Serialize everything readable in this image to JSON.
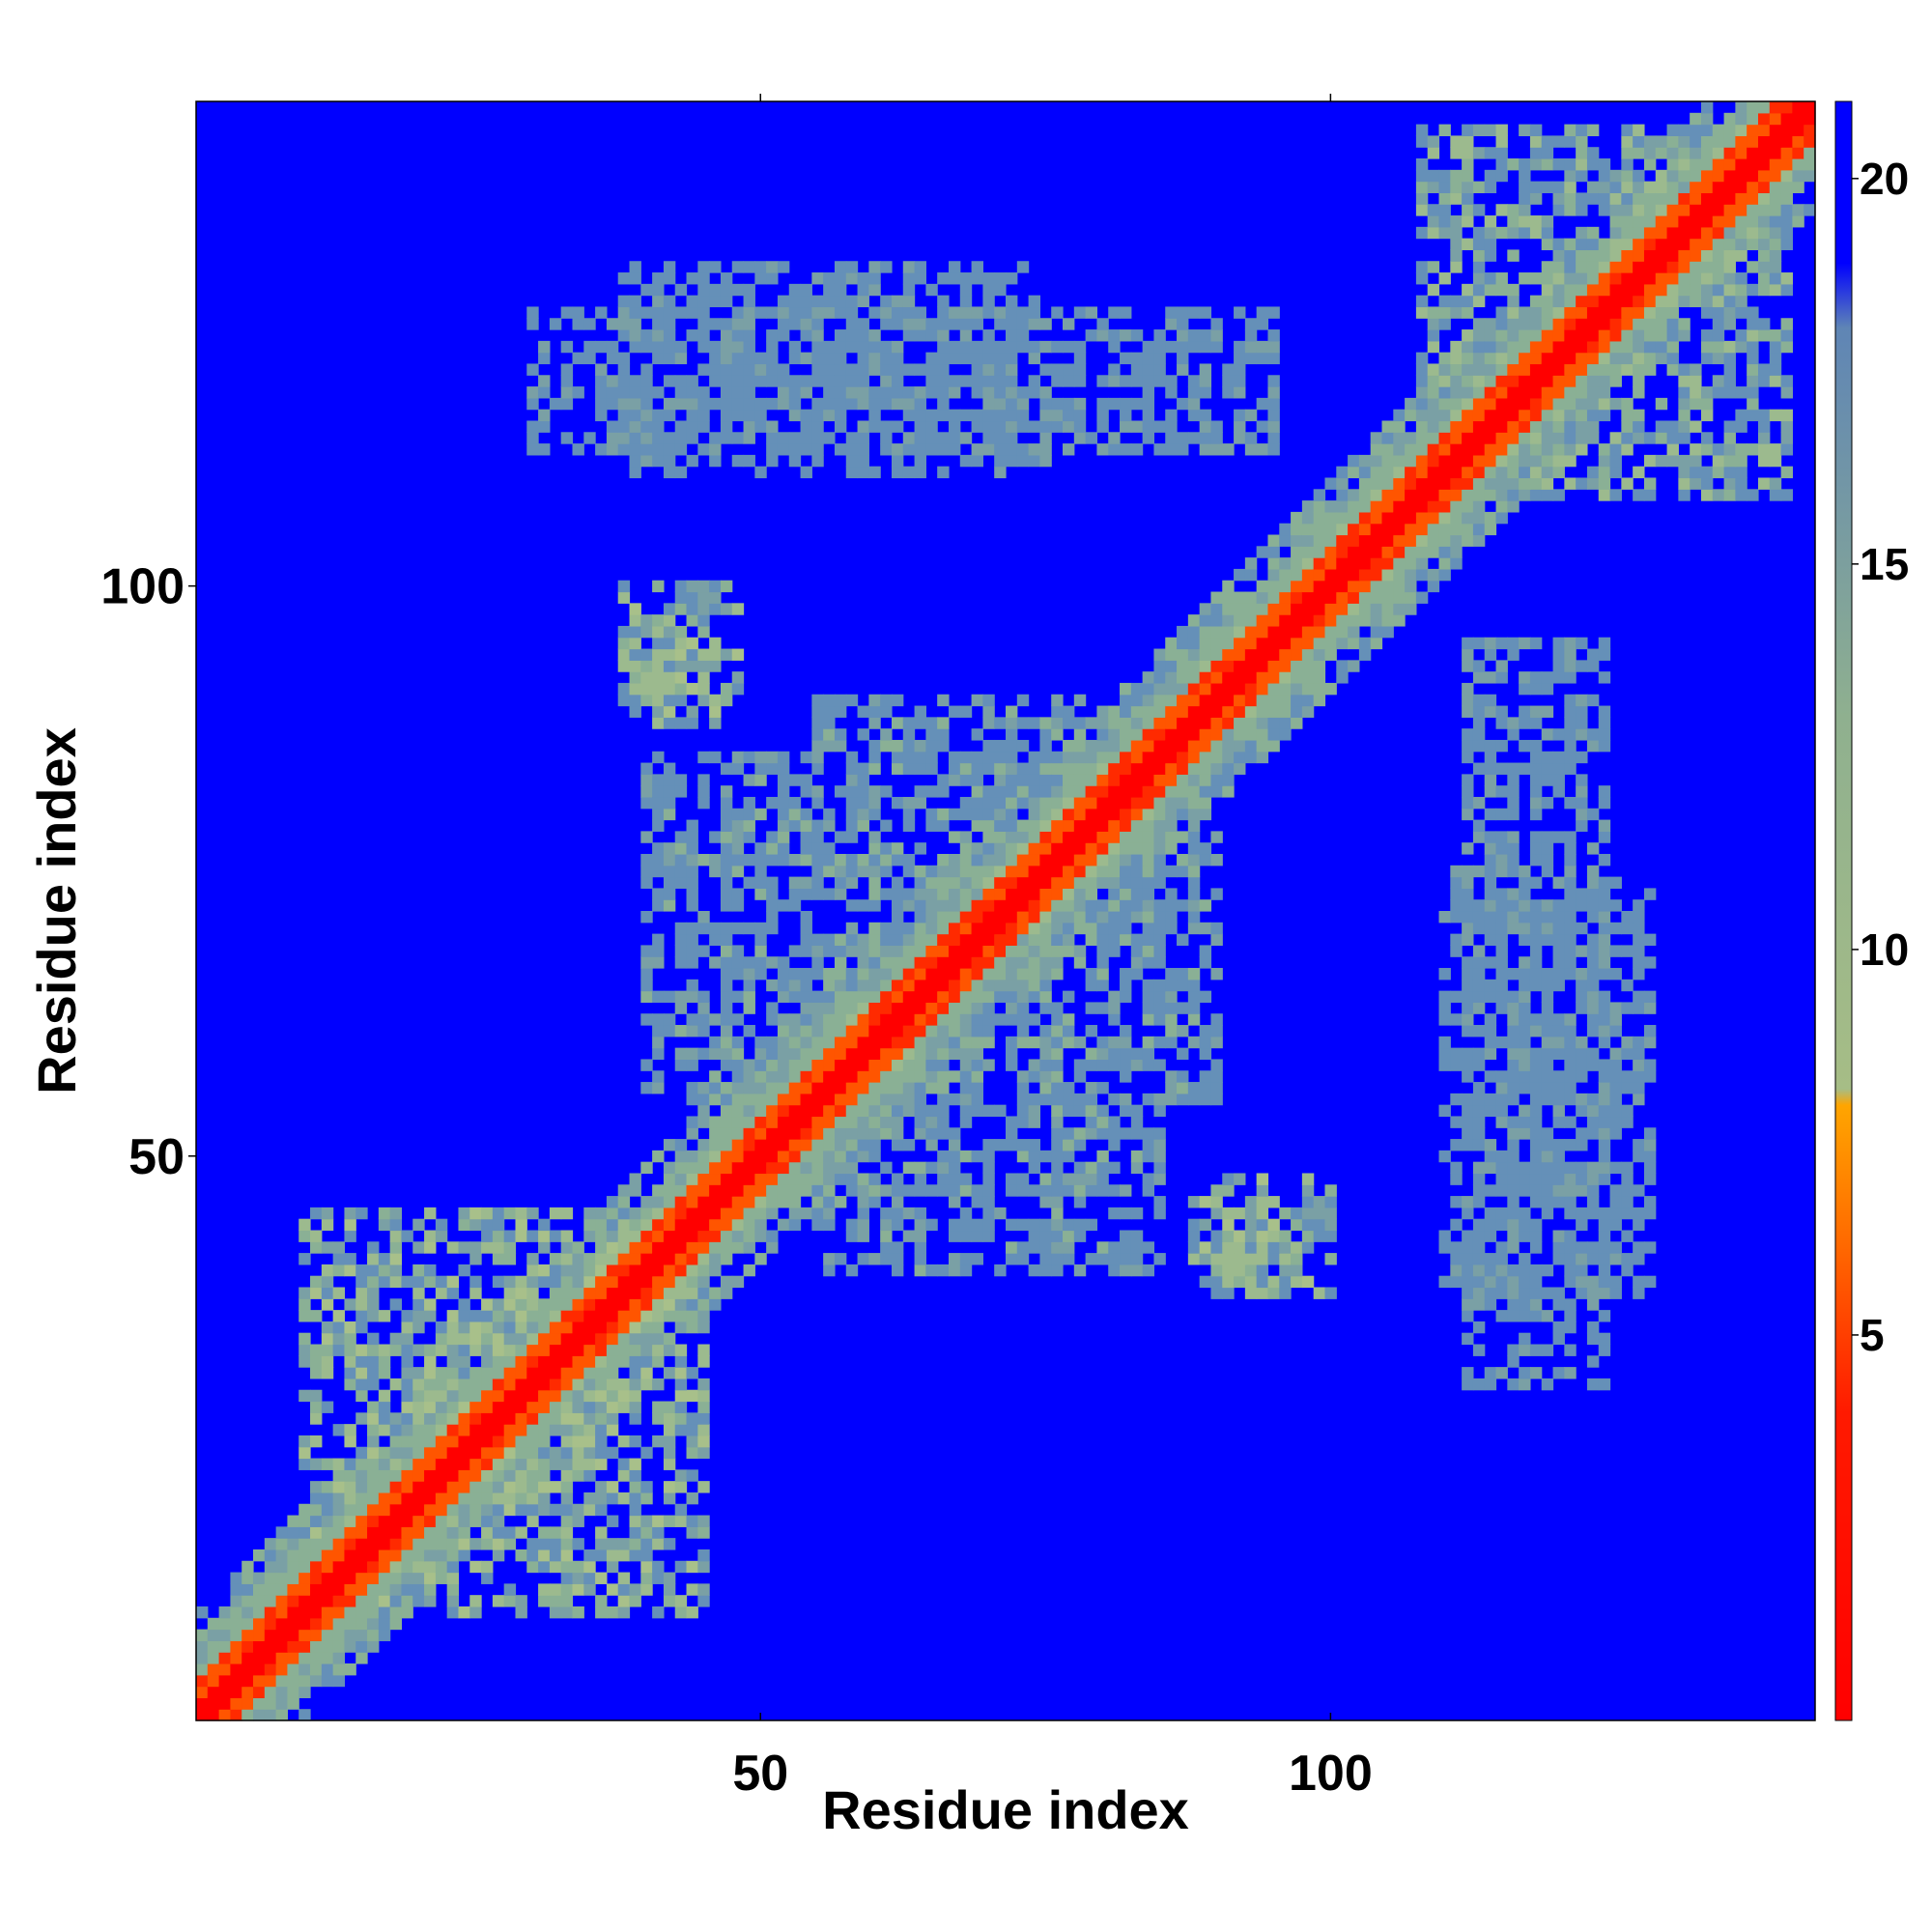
{
  "chart_data": {
    "type": "heatmap",
    "title": "",
    "xlabel": "Residue index",
    "ylabel": "Residue index",
    "x_range": [
      1,
      142
    ],
    "y_range": [
      1,
      142
    ],
    "x_ticks": [
      50,
      100
    ],
    "y_ticks": [
      50,
      100
    ],
    "colorbar": {
      "range": [
        0,
        21
      ],
      "ticks": [
        5,
        10,
        15,
        20
      ],
      "stops": [
        {
          "value": 0,
          "color": "#ff0000"
        },
        {
          "value": 4,
          "color": "#ff1a00"
        },
        {
          "value": 6,
          "color": "#ff6600"
        },
        {
          "value": 8,
          "color": "#ffa500"
        },
        {
          "value": 9,
          "color": "#9fb98a"
        },
        {
          "value": 13,
          "color": "#8fb08f"
        },
        {
          "value": 18,
          "color": "#5f85b5"
        },
        {
          "value": 20,
          "color": "#0000ff"
        }
      ]
    },
    "symmetric": true,
    "diagonal_value": 0,
    "background_value": 21,
    "notes_structure": [
      {
        "x": [
          10,
          45
        ],
        "y": [
          10,
          45
        ],
        "peak_value": 6
      },
      {
        "x": [
          38,
          48
        ],
        "y": [
          90,
          100
        ],
        "peak_value": 6
      },
      {
        "x": [
          40,
          90
        ],
        "y": [
          55,
          85
        ],
        "peak_value": 10
      },
      {
        "x": [
          88,
          97
        ],
        "y": [
          38,
          46
        ],
        "peak_value": 6
      },
      {
        "x": [
          110,
          128
        ],
        "y": [
          38,
          75
        ],
        "peak_value": 12
      },
      {
        "x": [
          30,
          95
        ],
        "y": [
          112,
          124
        ],
        "peak_value": 11
      },
      {
        "x": [
          110,
          140
        ],
        "y": [
          108,
          140
        ],
        "peak_value": 7
      }
    ]
  }
}
